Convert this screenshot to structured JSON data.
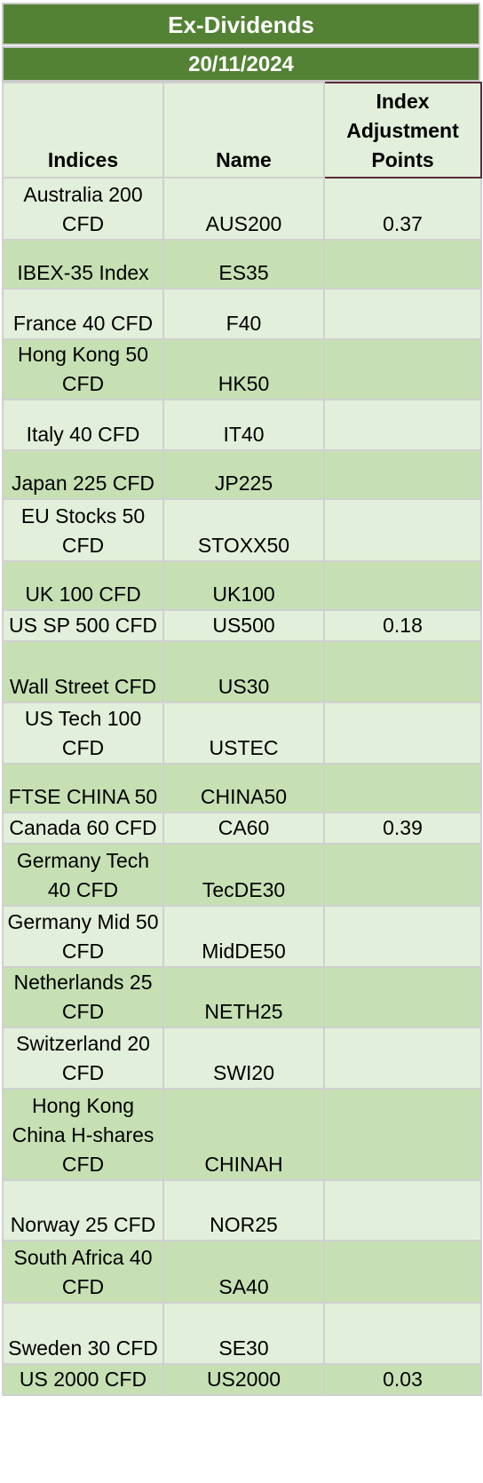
{
  "title": "Ex-Dividends",
  "date": "20/11/2024",
  "headers": {
    "indices": "Indices",
    "name": "Name",
    "points": "Index Adjustment Points"
  },
  "rows": [
    {
      "indices": "Australia 200 CFD",
      "name": "AUS200",
      "points": "0.37"
    },
    {
      "indices": "IBEX-35 Index",
      "name": "ES35",
      "points": ""
    },
    {
      "indices": "France 40 CFD",
      "name": "F40",
      "points": ""
    },
    {
      "indices": "Hong Kong 50 CFD",
      "name": "HK50",
      "points": ""
    },
    {
      "indices": "Italy 40 CFD",
      "name": "IT40",
      "points": ""
    },
    {
      "indices": "Japan 225 CFD",
      "name": "JP225",
      "points": ""
    },
    {
      "indices": "EU Stocks 50 CFD",
      "name": "STOXX50",
      "points": ""
    },
    {
      "indices": "UK 100 CFD",
      "name": "UK100",
      "points": ""
    },
    {
      "indices": "US SP 500 CFD",
      "name": "US500",
      "points": "0.18"
    },
    {
      "indices": "Wall Street CFD",
      "name": "US30",
      "points": ""
    },
    {
      "indices": "US Tech 100 CFD",
      "name": "USTEC",
      "points": ""
    },
    {
      "indices": "FTSE CHINA 50",
      "name": "CHINA50",
      "points": ""
    },
    {
      "indices": "Canada 60 CFD",
      "name": "CA60",
      "points": "0.39"
    },
    {
      "indices": "Germany Tech 40 CFD",
      "name": "TecDE30",
      "points": ""
    },
    {
      "indices": "Germany Mid 50 CFD",
      "name": "MidDE50",
      "points": ""
    },
    {
      "indices": "Netherlands 25 CFD",
      "name": "NETH25",
      "points": ""
    },
    {
      "indices": "Switzerland 20 CFD",
      "name": "SWI20",
      "points": ""
    },
    {
      "indices": "Hong Kong China H-shares CFD",
      "name": "CHINAH",
      "points": ""
    },
    {
      "indices": "Norway 25 CFD",
      "name": "NOR25",
      "points": ""
    },
    {
      "indices": "South Africa 40 CFD",
      "name": "SA40",
      "points": ""
    },
    {
      "indices": "Sweden 30 CFD",
      "name": "SE30",
      "points": ""
    },
    {
      "indices": "US 2000 CFD",
      "name": "US2000",
      "points": "0.03"
    }
  ]
}
